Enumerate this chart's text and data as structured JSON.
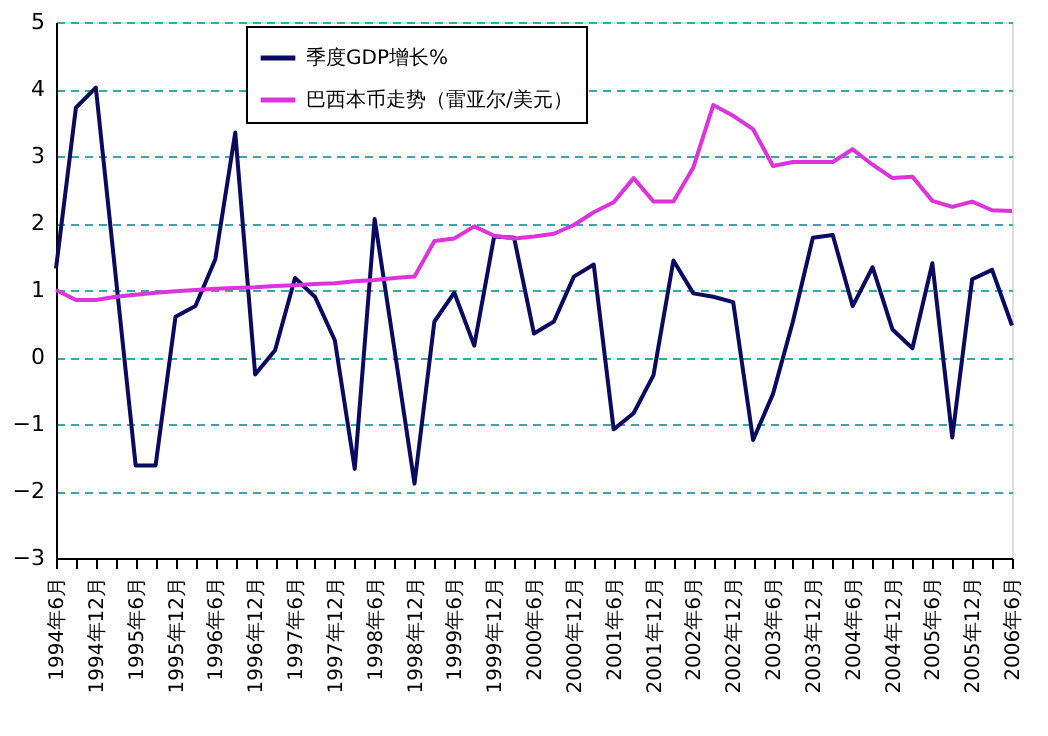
{
  "chart_data": {
    "type": "line",
    "categories": [
      "1994年6月",
      null,
      "1994年12月",
      null,
      "1995年6月",
      null,
      "1995年12月",
      null,
      "1996年6月",
      null,
      "1996年12月",
      null,
      "1997年6月",
      null,
      "1997年12月",
      null,
      "1998年6月",
      null,
      "1998年12月",
      null,
      "1999年6月",
      null,
      "1999年12月",
      null,
      "2000年6月",
      null,
      "2000年12月",
      null,
      "2001年6月",
      null,
      "2001年12月",
      null,
      "2002年6月",
      null,
      "2002年12月",
      null,
      "2003年6月",
      null,
      "2003年12月",
      null,
      "2004年6月",
      null,
      "2004年12月",
      null,
      "2005年6月",
      null,
      "2005年12月",
      null,
      "2006年6月"
    ],
    "series": [
      {
        "name": "季度GDP增长%",
        "color": "#0a0a60",
        "values": [
          1.32,
          3.72,
          4.02,
          1.2,
          -1.62,
          -1.62,
          0.6,
          0.76,
          1.46,
          3.35,
          -0.26,
          0.1,
          1.18,
          0.9,
          0.25,
          -1.67,
          2.06,
          0.1,
          -1.89,
          0.53,
          0.96,
          0.17,
          1.8,
          1.78,
          0.35,
          0.53,
          1.2,
          1.38,
          -1.08,
          -0.84,
          -0.27,
          1.44,
          0.95,
          0.9,
          0.82,
          -1.24,
          -0.55,
          0.53,
          1.78,
          1.82,
          0.76,
          1.34,
          0.41,
          0.13,
          1.4,
          -1.2,
          1.16,
          1.3,
          0.47
        ]
      },
      {
        "name": "巴西本币走势（雷亚尔/美元）",
        "color": "#dd33dd",
        "values": [
          1.0,
          0.85,
          0.85,
          0.9,
          0.93,
          0.96,
          0.98,
          1.0,
          1.02,
          1.03,
          1.04,
          1.06,
          1.07,
          1.09,
          1.1,
          1.13,
          1.15,
          1.18,
          1.2,
          1.73,
          1.77,
          1.95,
          1.81,
          1.77,
          1.8,
          1.84,
          1.97,
          2.16,
          2.31,
          2.67,
          2.32,
          2.32,
          2.83,
          3.76,
          3.6,
          3.4,
          2.85,
          2.91,
          2.91,
          2.91,
          3.1,
          2.87,
          2.67,
          2.69,
          2.33,
          2.24,
          2.32,
          2.19,
          2.18
        ]
      }
    ],
    "ylim": [
      -3,
      5
    ],
    "yticks": [
      -3,
      -2,
      -1,
      0,
      1,
      2,
      3,
      4,
      5
    ],
    "grid": "y",
    "legend": "top left"
  }
}
